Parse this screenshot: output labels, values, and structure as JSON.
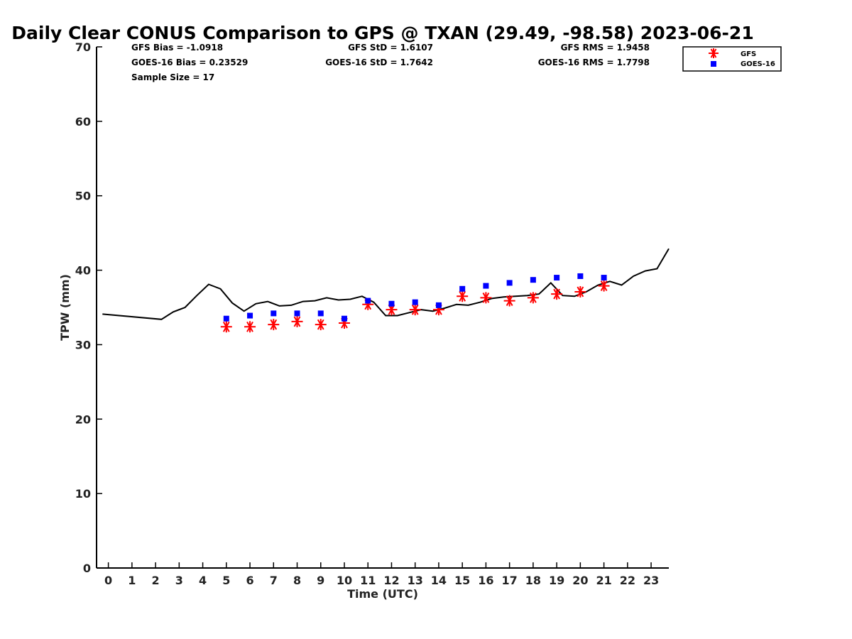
{
  "chart_data": {
    "type": "line",
    "title": "Daily Clear CONUS Comparison to GPS @ TXAN (29.49, -98.58) 2023-06-21",
    "xlabel": "Time (UTC)",
    "ylabel": "TPW (mm)",
    "xlim": [
      -0.5,
      23.75
    ],
    "ylim": [
      0,
      70
    ],
    "x_ticks": [
      "0",
      "1",
      "2",
      "3",
      "4",
      "5",
      "6",
      "7",
      "8",
      "9",
      "10",
      "11",
      "12",
      "13",
      "14",
      "15",
      "16",
      "17",
      "18",
      "19",
      "20",
      "21",
      "22",
      "23"
    ],
    "y_ticks": [
      "0",
      "10",
      "20",
      "30",
      "40",
      "50",
      "60",
      "70"
    ],
    "grid": false,
    "legend_position": "top-right",
    "colors": {
      "gps": "#000000",
      "gfs": "#ff0000",
      "goes": "#0000ff"
    },
    "series": [
      {
        "key": "gps",
        "style": "line",
        "x": [
          -0.25,
          2.25,
          2.75,
          3.25,
          3.75,
          4.25,
          4.75,
          5.25,
          5.75,
          6.25,
          6.75,
          7.25,
          7.75,
          8.25,
          8.75,
          9.25,
          9.75,
          10.25,
          10.75,
          11.25,
          11.75,
          12.25,
          12.75,
          13.25,
          13.75,
          14.25,
          14.75,
          15.25,
          15.75,
          16.25,
          16.75,
          17.25,
          17.75,
          18.25,
          18.75,
          19.25,
          19.75,
          20.25,
          20.75,
          21.25,
          21.75,
          22.25,
          22.75,
          23.25,
          23.75
        ],
        "values": [
          34.1,
          33.4,
          34.4,
          35.0,
          36.6,
          38.1,
          37.5,
          35.6,
          34.5,
          35.5,
          35.8,
          35.2,
          35.3,
          35.8,
          35.9,
          36.3,
          36.0,
          36.1,
          36.5,
          35.7,
          33.9,
          33.9,
          34.3,
          34.7,
          34.5,
          34.9,
          35.4,
          35.3,
          35.7,
          36.2,
          36.4,
          36.5,
          36.6,
          36.8,
          38.3,
          36.6,
          36.5,
          37.1,
          38.0,
          38.5,
          38.0,
          39.2,
          39.9,
          40.2,
          42.9
        ]
      },
      {
        "key": "gfs",
        "name": "GFS",
        "style": "asterisk",
        "x": [
          5,
          6,
          7,
          8,
          9,
          10,
          11,
          12,
          13,
          14,
          15,
          16,
          17,
          18,
          19,
          20,
          21
        ],
        "values": [
          32.4,
          32.4,
          32.7,
          33.1,
          32.7,
          32.9,
          35.4,
          34.7,
          34.7,
          34.7,
          36.5,
          36.3,
          35.9,
          36.3,
          36.8,
          37.1,
          37.9
        ]
      },
      {
        "key": "goes",
        "name": "GOES-16",
        "style": "square",
        "x": [
          5,
          6,
          7,
          8,
          9,
          10,
          11,
          12,
          13,
          14,
          15,
          16,
          17,
          18,
          19,
          20,
          21
        ],
        "values": [
          33.5,
          33.9,
          34.2,
          34.2,
          34.2,
          33.5,
          35.9,
          35.5,
          35.7,
          35.3,
          37.5,
          37.9,
          38.3,
          38.7,
          39.0,
          39.2,
          39.0
        ]
      }
    ],
    "stats": [
      {
        "text": "GFS Bias = -1.0918"
      },
      {
        "text": "GOES-16 Bias = 0.23529"
      },
      {
        "text": "Sample Size = 17"
      },
      {
        "text": "GFS StD = 1.6107"
      },
      {
        "text": "GOES-16 StD = 1.7642"
      },
      {
        "text": "GFS RMS = 1.9458"
      },
      {
        "text": "GOES-16 RMS = 1.7798"
      }
    ],
    "legend": [
      {
        "label": "GFS",
        "symbol": "asterisk",
        "color": "#ff0000"
      },
      {
        "label": "GOES-16",
        "symbol": "square",
        "color": "#0000ff"
      }
    ]
  }
}
